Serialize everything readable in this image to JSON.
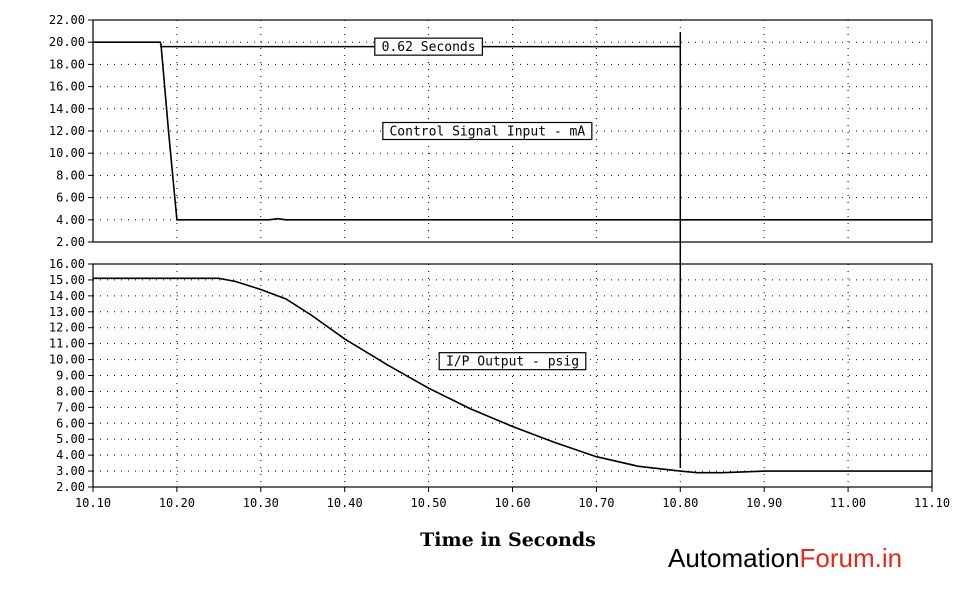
{
  "chart_data": [
    {
      "id": "top",
      "type": "line",
      "xlim": [
        10.1,
        11.1
      ],
      "ylim": [
        2.0,
        22.0
      ],
      "yticks": [
        "2.00",
        "4.00",
        "6.00",
        "8.00",
        "10.00",
        "12.00",
        "14.00",
        "16.00",
        "18.00",
        "20.00",
        "22.00"
      ],
      "grid": true,
      "series": [
        {
          "x": [
            10.1,
            10.18,
            10.181,
            10.19,
            10.2,
            10.31,
            10.32,
            10.33,
            11.1
          ],
          "y": [
            20.0,
            20.0,
            19.8,
            12.0,
            4.0,
            4.0,
            4.1,
            4.0,
            4.0
          ]
        }
      ],
      "annotations": [
        {
          "text": "0.62 Seconds",
          "x": 10.5,
          "y": 19.6
        },
        {
          "text": "Control Signal Input - mA",
          "x": 10.57,
          "y": 12.0
        }
      ],
      "bracket": {
        "y": 19.6,
        "x_start": 10.18,
        "x_end": 10.8
      }
    },
    {
      "id": "bottom",
      "type": "line",
      "xlim": [
        10.1,
        11.1
      ],
      "ylim": [
        2.0,
        16.0
      ],
      "yticks": [
        "2.00",
        "3.00",
        "4.00",
        "5.00",
        "6.00",
        "7.00",
        "8.00",
        "9.00",
        "10.00",
        "11.00",
        "12.00",
        "13.00",
        "14.00",
        "15.00",
        "16.00"
      ],
      "grid": true,
      "series": [
        {
          "x": [
            10.1,
            10.25,
            10.27,
            10.3,
            10.33,
            10.36,
            10.4,
            10.45,
            10.5,
            10.55,
            10.6,
            10.65,
            10.7,
            10.75,
            10.8,
            10.82,
            10.85,
            10.9,
            11.1
          ],
          "y": [
            15.1,
            15.1,
            14.9,
            14.4,
            13.8,
            12.8,
            11.3,
            9.7,
            8.2,
            6.9,
            5.8,
            4.8,
            3.9,
            3.3,
            3.0,
            2.9,
            2.9,
            3.0,
            3.0
          ]
        }
      ],
      "annotations": [
        {
          "text": "I/P Output - psig",
          "x": 10.6,
          "y": 9.9
        }
      ]
    }
  ],
  "x_ticks": [
    "10.10",
    "10.20",
    "10.30",
    "10.40",
    "10.50",
    "10.60",
    "10.70",
    "10.80",
    "10.90",
    "11.00",
    "11.10"
  ],
  "xlabel": "Time in Seconds",
  "marker_x": 10.8,
  "brand": {
    "part1": "Automation",
    "part2": "Forum.in",
    "color1": "#000000",
    "color2": "#e8261b"
  }
}
